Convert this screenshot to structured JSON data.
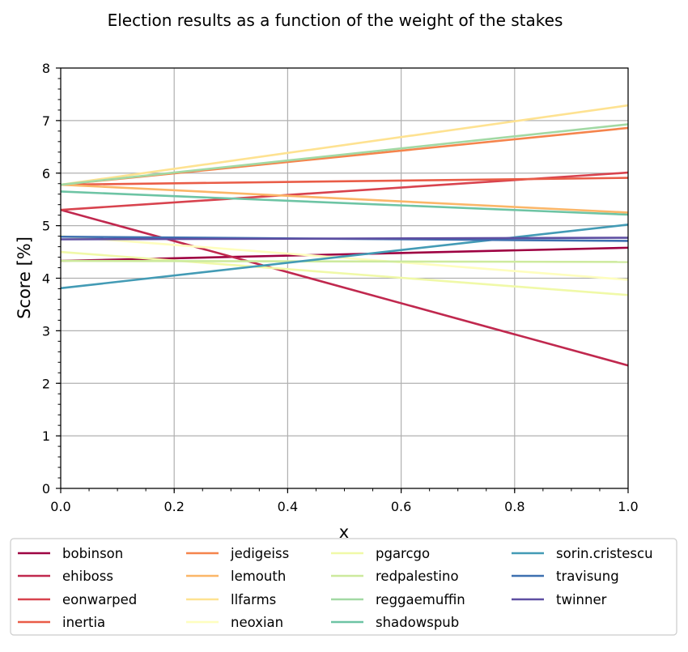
{
  "chart_data": {
    "type": "line",
    "title": "Election results as a function of the weight of the stakes",
    "xlabel": "x",
    "ylabel": "Score [%]",
    "xlim": [
      0,
      1
    ],
    "ylim": [
      0,
      8
    ],
    "xticks": [
      "0.0",
      "0.2",
      "0.4",
      "0.6",
      "0.8",
      "1.0"
    ],
    "yticks": [
      "0",
      "1",
      "2",
      "3",
      "4",
      "5",
      "6",
      "7",
      "8"
    ],
    "grid": true,
    "legend_position": "bottom",
    "x": [
      0,
      1
    ],
    "series": [
      {
        "name": "bobinson",
        "color": "#9e0142",
        "values": [
          4.33,
          4.58
        ]
      },
      {
        "name": "ehiboss",
        "color": "#c0284e",
        "values": [
          5.3,
          2.34
        ]
      },
      {
        "name": "eonwarped",
        "color": "#d8434e",
        "values": [
          5.3,
          6.01
        ]
      },
      {
        "name": "inertia",
        "color": "#e95c47",
        "values": [
          5.78,
          5.91
        ]
      },
      {
        "name": "jedigeiss",
        "color": "#f5844c",
        "values": [
          5.78,
          6.86
        ]
      },
      {
        "name": "lemouth",
        "color": "#fbb668",
        "values": [
          5.78,
          5.25
        ]
      },
      {
        "name": "llfarms",
        "color": "#fee291",
        "values": [
          5.78,
          7.29
        ]
      },
      {
        "name": "neoxian",
        "color": "#fefebe",
        "values": [
          4.8,
          3.97
        ]
      },
      {
        "name": "pgarcgo",
        "color": "#f0f9a8",
        "values": [
          4.5,
          3.68
        ]
      },
      {
        "name": "redpalestino",
        "color": "#cdea9d",
        "values": [
          4.33,
          4.31
        ]
      },
      {
        "name": "reggaemuffin",
        "color": "#a2d9a4",
        "values": [
          5.78,
          6.93
        ]
      },
      {
        "name": "shadowspub",
        "color": "#6dc4a4",
        "values": [
          5.65,
          5.21
        ]
      },
      {
        "name": "sorin.cristescu",
        "color": "#439bb5",
        "values": [
          3.81,
          5.02
        ]
      },
      {
        "name": "travisung",
        "color": "#3d70b0",
        "values": [
          4.79,
          4.71
        ]
      },
      {
        "name": "twinner",
        "color": "#5e4fa2",
        "values": [
          4.74,
          4.77
        ]
      }
    ]
  }
}
